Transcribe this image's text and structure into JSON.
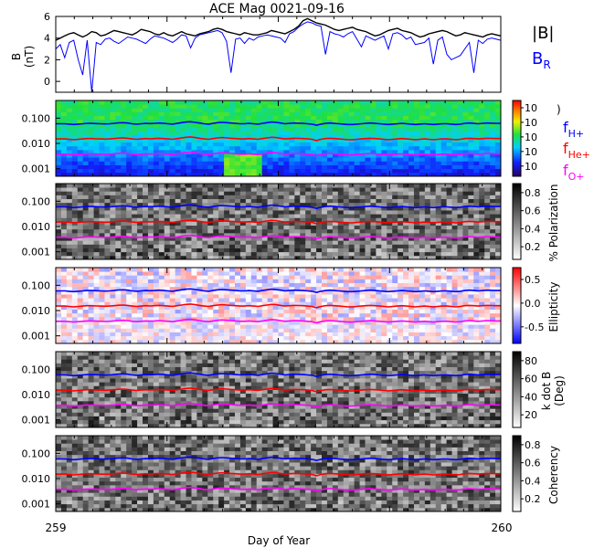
{
  "chart_data": {
    "type": "line",
    "title": "ACE Mag 0021-09-16",
    "xlabel": "Day of Year",
    "x_ticks": [
      "259",
      "260"
    ],
    "xlim": [
      259,
      260
    ],
    "legend": {
      "top": [
        {
          "label": "|B|",
          "color": "#000000"
        },
        {
          "label": "B",
          "sub": "R",
          "color": "#0000ff"
        }
      ],
      "freq": [
        {
          "label": "f",
          "sub": "H+",
          "color": "#0000ff"
        },
        {
          "label": "f",
          "sub": "He+",
          "color": "#ff0000"
        },
        {
          "label": "f",
          "sub": "O+",
          "color": "#ff00ff"
        }
      ]
    },
    "panels": [
      {
        "kind": "timeseries",
        "ylabel": "B",
        "yunit": "(nT)",
        "ylim": [
          -1,
          6
        ],
        "y_ticks": [
          0,
          2,
          4,
          6
        ],
        "series": [
          {
            "name": "|B|",
            "color": "#000000",
            "y": [
              3.8,
              4.0,
              4.2,
              4.4,
              4.5,
              4.3,
              4.1,
              4.3,
              4.6,
              4.5,
              4.2,
              4.3,
              4.5,
              4.7,
              4.6,
              4.5,
              4.4,
              4.3,
              4.5,
              4.8,
              4.7,
              4.6,
              4.4,
              4.3,
              4.5,
              4.3,
              4.2,
              4.4,
              4.6,
              4.4,
              4.3,
              4.2,
              4.4,
              4.5,
              4.6,
              4.8,
              4.9,
              4.8,
              4.6,
              4.5,
              4.4,
              4.3,
              4.5,
              4.4,
              4.3,
              4.3,
              4.4,
              4.5,
              4.7,
              4.6,
              4.5,
              4.4,
              4.6,
              4.8,
              5.1,
              5.6,
              5.8,
              5.6,
              5.4,
              5.3,
              5.2,
              5.0,
              4.8,
              4.7,
              4.8,
              4.9,
              5.0,
              4.8,
              4.7,
              4.6,
              4.4,
              4.2,
              4.3,
              4.5,
              4.7,
              4.8,
              4.9,
              4.7,
              4.6,
              4.5,
              4.3,
              4.1,
              4.2,
              4.4,
              4.5,
              4.6,
              4.7,
              4.6,
              4.4,
              4.2,
              4.3,
              4.5,
              4.4,
              4.3,
              4.2,
              4.1,
              4.3,
              4.4,
              4.3,
              4.2
            ]
          },
          {
            "name": "B_R",
            "color": "#0000ff",
            "y": [
              3.0,
              3.4,
              2.2,
              3.6,
              3.8,
              2.0,
              0.6,
              3.8,
              -1.0,
              3.6,
              3.4,
              3.9,
              4.0,
              3.7,
              3.5,
              3.8,
              4.1,
              4.0,
              3.9,
              3.7,
              3.5,
              3.9,
              4.2,
              4.1,
              4.0,
              3.8,
              3.6,
              3.9,
              4.3,
              4.2,
              3.1,
              4.0,
              4.3,
              4.4,
              4.5,
              4.6,
              4.7,
              4.5,
              3.7,
              0.8,
              3.9,
              4.0,
              3.5,
              4.0,
              3.8,
              4.1,
              4.2,
              4.3,
              4.2,
              4.1,
              4.0,
              3.6,
              4.4,
              4.6,
              5.0,
              5.3,
              5.5,
              5.4,
              5.2,
              5.1,
              2.5,
              4.6,
              4.4,
              4.3,
              4.1,
              4.4,
              4.6,
              3.9,
              3.2,
              4.2,
              4.0,
              3.8,
              4.0,
              4.2,
              3.0,
              4.4,
              4.5,
              4.3,
              3.9,
              4.1,
              3.4,
              3.5,
              3.6,
              4.0,
              1.6,
              3.8,
              4.1,
              2.5,
              2.0,
              2.2,
              2.4,
              3.0,
              3.6,
              0.8,
              3.8,
              3.5,
              3.9,
              4.0,
              3.9,
              3.8
            ]
          }
        ]
      },
      {
        "kind": "spectrogram",
        "colormap": "rainbow",
        "ylim": [
          0.0005,
          0.5
        ],
        "y_ticks": [
          0.001,
          0.01,
          0.1
        ],
        "y_tick_labels": [
          "0.001",
          "0.010",
          "0.100"
        ],
        "colorbar_ticks": [
          "10",
          "10",
          "10",
          "10",
          "10"
        ],
        "colorbar_label": ")"
      },
      {
        "kind": "spectrogram",
        "colormap": "gray",
        "ylim": [
          0.0005,
          0.5
        ],
        "y_ticks": [
          0.001,
          0.01,
          0.1
        ],
        "y_tick_labels": [
          "0.001",
          "0.010",
          "0.100"
        ],
        "colorbar_ticks": [
          "0.2",
          "0.4",
          "0.6",
          "0.8"
        ],
        "colorbar_label": "% Polarization"
      },
      {
        "kind": "spectrogram",
        "colormap": "bwr",
        "ylim": [
          0.0005,
          0.5
        ],
        "y_ticks": [
          0.001,
          0.01,
          0.1
        ],
        "y_tick_labels": [
          "0.001",
          "0.010",
          "0.100"
        ],
        "colorbar_ticks": [
          "-0.5",
          "0.0",
          "0.5"
        ],
        "colorbar_label": "Ellipticity"
      },
      {
        "kind": "spectrogram",
        "colormap": "gray",
        "ylim": [
          0.0005,
          0.5
        ],
        "y_ticks": [
          0.001,
          0.01,
          0.1
        ],
        "y_tick_labels": [
          "0.001",
          "0.010",
          "0.100"
        ],
        "colorbar_ticks": [
          "20",
          "40",
          "60",
          "80"
        ],
        "colorbar_label": "k dot B",
        "colorbar_unit": "(Deg)"
      },
      {
        "kind": "spectrogram",
        "colormap": "gray",
        "ylim": [
          0.0005,
          0.5
        ],
        "y_ticks": [
          0.001,
          0.01,
          0.1
        ],
        "y_tick_labels": [
          "0.001",
          "0.010",
          "0.100"
        ],
        "colorbar_ticks": [
          "0.2",
          "0.4",
          "0.6",
          "0.8"
        ],
        "colorbar_label": "Coherency"
      }
    ],
    "freq_lines": [
      {
        "name": "fH+",
        "color": "#0000ff",
        "y": [
          0.06,
          0.06,
          0.06,
          0.058,
          0.056,
          0.058,
          0.06,
          0.062,
          0.062,
          0.061,
          0.06,
          0.059,
          0.06,
          0.062,
          0.065,
          0.066,
          0.064,
          0.06,
          0.058,
          0.06,
          0.062,
          0.061,
          0.062,
          0.064,
          0.062,
          0.06,
          0.058,
          0.062,
          0.066,
          0.07,
          0.072,
          0.068,
          0.064,
          0.06,
          0.058,
          0.062,
          0.066,
          0.068,
          0.066,
          0.064,
          0.062,
          0.06,
          0.06,
          0.062,
          0.06,
          0.058,
          0.062,
          0.066,
          0.07,
          0.068,
          0.064,
          0.06,
          0.062,
          0.064,
          0.063,
          0.062,
          0.06,
          0.058,
          0.052,
          0.058,
          0.062,
          0.064,
          0.062,
          0.06,
          0.058,
          0.056,
          0.056,
          0.058,
          0.06,
          0.062,
          0.064,
          0.062,
          0.06,
          0.058,
          0.056,
          0.058,
          0.06,
          0.062,
          0.06,
          0.058,
          0.056,
          0.058,
          0.06,
          0.058,
          0.056,
          0.058,
          0.06,
          0.06,
          0.058,
          0.056,
          0.058,
          0.062,
          0.064,
          0.062,
          0.06,
          0.062,
          0.064,
          0.063,
          0.062,
          0.062
        ]
      },
      {
        "name": "fHe+",
        "color": "#ff0000",
        "y": [
          0.015,
          0.015,
          0.015,
          0.0145,
          0.014,
          0.0145,
          0.015,
          0.0155,
          0.0155,
          0.0152,
          0.015,
          0.0148,
          0.015,
          0.0155,
          0.0162,
          0.0165,
          0.016,
          0.015,
          0.0145,
          0.015,
          0.0155,
          0.0152,
          0.0155,
          0.016,
          0.0155,
          0.015,
          0.0145,
          0.0155,
          0.0165,
          0.0175,
          0.018,
          0.017,
          0.016,
          0.015,
          0.0145,
          0.0155,
          0.0165,
          0.017,
          0.0165,
          0.016,
          0.0155,
          0.015,
          0.015,
          0.0155,
          0.015,
          0.0145,
          0.0155,
          0.0165,
          0.0175,
          0.017,
          0.016,
          0.015,
          0.0155,
          0.016,
          0.0158,
          0.0155,
          0.015,
          0.0145,
          0.013,
          0.0145,
          0.0155,
          0.016,
          0.0155,
          0.015,
          0.0145,
          0.014,
          0.014,
          0.0145,
          0.015,
          0.0155,
          0.016,
          0.0155,
          0.015,
          0.0145,
          0.014,
          0.0145,
          0.015,
          0.0155,
          0.015,
          0.0145,
          0.014,
          0.0145,
          0.015,
          0.0145,
          0.014,
          0.0145,
          0.015,
          0.015,
          0.0145,
          0.014,
          0.0145,
          0.0155,
          0.016,
          0.0155,
          0.015,
          0.0155,
          0.016,
          0.0158,
          0.0155,
          0.0155
        ]
      },
      {
        "name": "fO+",
        "color": "#ff00ff",
        "y": [
          0.00375,
          0.00375,
          0.00375,
          0.00362,
          0.0035,
          0.00362,
          0.00375,
          0.00388,
          0.00388,
          0.0038,
          0.00375,
          0.0037,
          0.00375,
          0.00388,
          0.00405,
          0.00412,
          0.004,
          0.00375,
          0.00362,
          0.00375,
          0.00388,
          0.0038,
          0.00388,
          0.004,
          0.00388,
          0.00375,
          0.00362,
          0.00388,
          0.00412,
          0.00438,
          0.0045,
          0.00425,
          0.004,
          0.00375,
          0.00362,
          0.00388,
          0.00412,
          0.00425,
          0.00412,
          0.004,
          0.00388,
          0.00375,
          0.00375,
          0.00388,
          0.00375,
          0.00362,
          0.00388,
          0.00412,
          0.00438,
          0.00425,
          0.004,
          0.00375,
          0.00388,
          0.004,
          0.00395,
          0.00388,
          0.00375,
          0.00362,
          0.00325,
          0.00362,
          0.00388,
          0.004,
          0.00388,
          0.00375,
          0.00362,
          0.0035,
          0.0035,
          0.00362,
          0.00375,
          0.00388,
          0.004,
          0.00388,
          0.00375,
          0.00362,
          0.0035,
          0.00362,
          0.00375,
          0.00388,
          0.00375,
          0.00362,
          0.0035,
          0.00362,
          0.00375,
          0.00362,
          0.0035,
          0.00362,
          0.00375,
          0.00375,
          0.00362,
          0.0035,
          0.00362,
          0.00388,
          0.004,
          0.00388,
          0.00375,
          0.00388,
          0.004,
          0.00395,
          0.00388,
          0.00388
        ]
      }
    ]
  }
}
